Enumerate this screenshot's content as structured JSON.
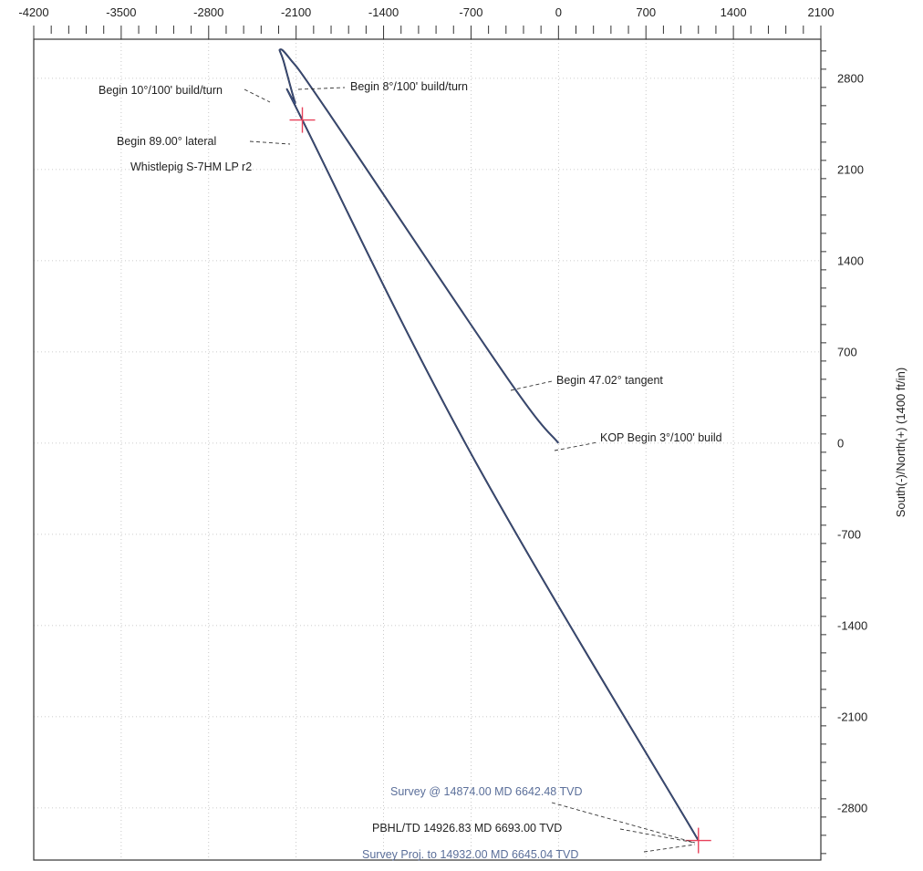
{
  "chart_data": {
    "type": "line",
    "title": "",
    "xlabel": "",
    "ylabel": "South(-)/North(+) (1400 ft/in)",
    "xlim": [
      -4200,
      2100
    ],
    "ylim": [
      -3200,
      3100
    ],
    "x_ticks": [
      -4200,
      -3500,
      -2800,
      -2100,
      -1400,
      -700,
      0,
      700,
      1400,
      2100
    ],
    "x_tick_labels": [
      "-4200",
      "-3500",
      "-2800",
      "-2100",
      "-1400",
      "-700",
      "0",
      "700",
      "1400",
      "2100"
    ],
    "y_ticks": [
      2800,
      2100,
      1400,
      700,
      0,
      -700,
      -1400,
      -2100,
      -2800
    ],
    "y_tick_labels": [
      "2800",
      "2100",
      "1400",
      "700",
      "0",
      "-700",
      "-1400",
      "-2100",
      "-2800"
    ],
    "grid": true,
    "series": [
      {
        "name": "",
        "color": "#2b3350",
        "x": [
          0,
          -410,
          -1850,
          -2150,
          -2230,
          -2200,
          -2110,
          -2050,
          -700,
          1120
        ],
        "y": [
          0,
          500,
          2550,
          2950,
          3020,
          2930,
          2620,
          2480,
          -80,
          -3050
        ]
      }
    ],
    "targets": [
      {
        "x": -2050,
        "y": 2480,
        "color": "#e8415a"
      },
      {
        "x": 1120,
        "y": -3050,
        "color": "#e8415a"
      }
    ],
    "annotations": [
      {
        "text": "Begin 10°/100' build/turn",
        "style": "plain"
      },
      {
        "text": "Begin 8°/100' build/turn",
        "style": "plain"
      },
      {
        "text": "Begin 89.00° lateral",
        "style": "plain"
      },
      {
        "text": "Whistlepig S-7HM LP r2",
        "style": "plain"
      },
      {
        "text": "Begin 47.02° tangent",
        "style": "plain"
      },
      {
        "text": "KOP Begin 3°/100' build",
        "style": "plain"
      },
      {
        "text": "Survey @ 14874.00 MD 6642.48 TVD",
        "style": "blue"
      },
      {
        "text": "PBHL/TD 14926.83 MD 6693.00 TVD",
        "style": "plain"
      },
      {
        "text": "Survey Proj. to 14932.00 MD 6645.04 TVD",
        "style": "blue"
      }
    ]
  }
}
